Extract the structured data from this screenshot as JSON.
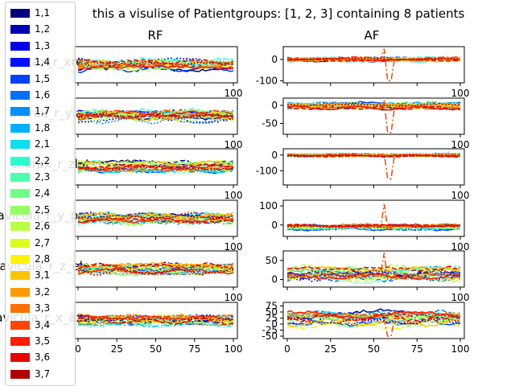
{
  "figure": {
    "title": "this a visulise of Patientgroups: [1, 2, 3] containing 8 patients",
    "column_titles": [
      "RF",
      "AF"
    ],
    "row_labels": [
      "thorax_r_xrex",
      "thorax_r_ylax",
      "thorax_r_zlat",
      "clavicula_r_y_pro",
      "clavicula_r_z_ele",
      "clavicula_r_x_axo"
    ]
  },
  "legend": {
    "placement": "left",
    "items": [
      {
        "label": "1,1",
        "color": "#00007f"
      },
      {
        "label": "1,2",
        "color": "#0000b2"
      },
      {
        "label": "1,3",
        "color": "#0000e8"
      },
      {
        "label": "1,4",
        "color": "#0010ff"
      },
      {
        "label": "1,5",
        "color": "#0040ff"
      },
      {
        "label": "1,6",
        "color": "#0070ff"
      },
      {
        "label": "1,7",
        "color": "#0090ff"
      },
      {
        "label": "1,8",
        "color": "#00b0ff"
      },
      {
        "label": "2,1",
        "color": "#0ce0f0"
      },
      {
        "label": "2,2",
        "color": "#29ffce"
      },
      {
        "label": "2,3",
        "color": "#4dffaa"
      },
      {
        "label": "2,4",
        "color": "#70ff86"
      },
      {
        "label": "2,5",
        "color": "#94ff63"
      },
      {
        "label": "2,6",
        "color": "#b7ff40"
      },
      {
        "label": "2,7",
        "color": "#daff1d"
      },
      {
        "label": "2,8",
        "color": "#fff200"
      },
      {
        "label": "3,1",
        "color": "#ffc400"
      },
      {
        "label": "3,2",
        "color": "#ff9a00"
      },
      {
        "label": "3,3",
        "color": "#ff7000"
      },
      {
        "label": "3,4",
        "color": "#ff4600"
      },
      {
        "label": "3,5",
        "color": "#ff1c00"
      },
      {
        "label": "3,6",
        "color": "#e80000"
      },
      {
        "label": "3,7",
        "color": "#b20000"
      }
    ]
  },
  "chart_data": {
    "type": "line",
    "x_range": [
      0,
      100
    ],
    "x_ticks": [
      0,
      25,
      50,
      75,
      100
    ],
    "grid": false,
    "panels": [
      {
        "row": 0,
        "col": "RF",
        "y_ticks": [],
        "center": 0,
        "spread": 1.0
      },
      {
        "row": 0,
        "col": "AF",
        "ylim": [
          -110,
          60
        ],
        "y_ticks": [
          0,
          -100
        ],
        "center": 0,
        "spread": 8,
        "spike": {
          "x": 58,
          "min": -100,
          "max": 50
        }
      },
      {
        "row": 1,
        "col": "RF",
        "y_ticks": [],
        "center": 0,
        "spread": 1.0
      },
      {
        "row": 1,
        "col": "AF",
        "ylim": [
          -80,
          20
        ],
        "y_ticks": [
          0,
          -50
        ],
        "center": 0,
        "spread": 8,
        "spike": {
          "x": 58,
          "min": -75,
          "max": 10
        }
      },
      {
        "row": 2,
        "col": "RF",
        "y_ticks": [],
        "center": 0,
        "spread": 1.0
      },
      {
        "row": 2,
        "col": "AF",
        "ylim": [
          -190,
          40
        ],
        "y_ticks": [
          0,
          -100
        ],
        "center": 0,
        "spread": 8,
        "spike": {
          "x": 58,
          "min": -150,
          "max": 10
        }
      },
      {
        "row": 3,
        "col": "RF",
        "y_ticks": [],
        "center": 0,
        "spread": 1.0
      },
      {
        "row": 3,
        "col": "AF",
        "ylim": [
          -60,
          130
        ],
        "y_ticks": [
          100,
          0
        ],
        "center": -10,
        "spread": 12,
        "spike": {
          "x": 58,
          "min": -20,
          "max": 110
        }
      },
      {
        "row": 4,
        "col": "RF",
        "y_ticks": [],
        "center": 0,
        "spread": 1.0
      },
      {
        "row": 4,
        "col": "AF",
        "ylim": [
          -20,
          75
        ],
        "y_ticks": [
          50,
          0
        ],
        "center": 15,
        "spread": 15,
        "spike": {
          "x": 58,
          "min": 0,
          "max": 70
        }
      },
      {
        "row": 5,
        "col": "RF",
        "y_ticks": [],
        "center": 0,
        "spread": 1.0
      },
      {
        "row": 5,
        "col": "AF",
        "ylim": [
          -60,
          90
        ],
        "y_ticks": [
          75,
          50,
          25,
          0,
          -25,
          -50
        ],
        "center": 20,
        "spread": 25,
        "spike": {
          "x": 58,
          "min": -50,
          "max": 20
        }
      }
    ]
  }
}
